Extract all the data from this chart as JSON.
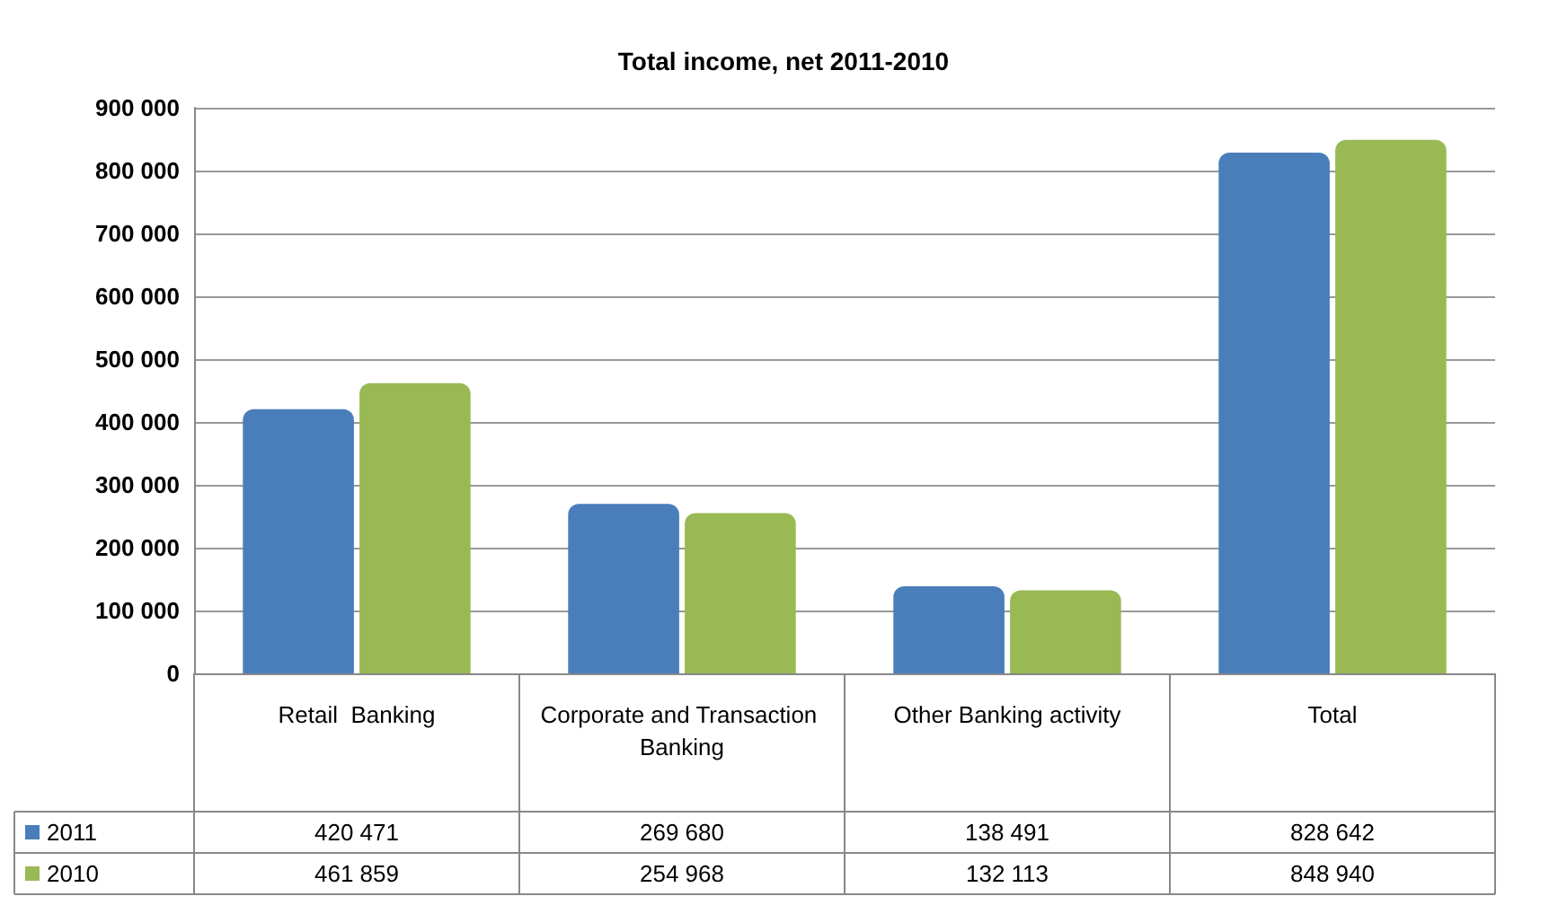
{
  "chart_data": {
    "type": "bar",
    "title": "Total income, net 2011-2010",
    "categories": [
      "Retail  Banking",
      "Corporate and Transaction Banking",
      "Other Banking activity",
      "Total"
    ],
    "series": [
      {
        "name": "2011",
        "color": "#4a7ebb",
        "values": [
          420471,
          269680,
          138491,
          828642
        ],
        "value_labels": [
          "420 471",
          "269 680",
          "138 491",
          "828 642"
        ]
      },
      {
        "name": "2010",
        "color": "#98b954",
        "values": [
          461859,
          254968,
          132113,
          848940
        ],
        "value_labels": [
          "461 859",
          "254 968",
          "132 113",
          "848 940"
        ]
      }
    ],
    "ylim": [
      0,
      900000
    ],
    "yticks": [
      {
        "value": 0,
        "label": "0"
      },
      {
        "value": 100000,
        "label": "100 000"
      },
      {
        "value": 200000,
        "label": "200 000"
      },
      {
        "value": 300000,
        "label": "300 000"
      },
      {
        "value": 400000,
        "label": "400 000"
      },
      {
        "value": 500000,
        "label": "500 000"
      },
      {
        "value": 600000,
        "label": "600 000"
      },
      {
        "value": 700000,
        "label": "700 000"
      },
      {
        "value": 800000,
        "label": "800 000"
      },
      {
        "value": 900000,
        "label": "900 000"
      }
    ],
    "grid": "y",
    "legend": "bottom"
  }
}
